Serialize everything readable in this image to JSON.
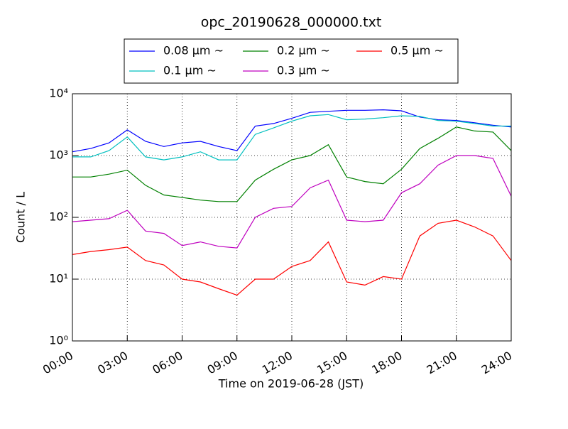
{
  "chart_data": {
    "type": "line",
    "title": "opc_20190628_000000.txt",
    "x_label": "Time on 2019-06-28 (JST)",
    "y_label": "Count / L",
    "x": [
      0,
      1,
      2,
      3,
      4,
      5,
      6,
      7,
      8,
      9,
      10,
      11,
      12,
      13,
      14,
      15,
      16,
      17,
      18,
      19,
      20,
      21,
      22,
      23,
      24
    ],
    "xlim": [
      0,
      24
    ],
    "xticks": [
      {
        "value": 0,
        "label": "00:00"
      },
      {
        "value": 3,
        "label": "03:00"
      },
      {
        "value": 6,
        "label": "06:00"
      },
      {
        "value": 9,
        "label": "09:00"
      },
      {
        "value": 12,
        "label": "12:00"
      },
      {
        "value": 15,
        "label": "15:00"
      },
      {
        "value": 18,
        "label": "18:00"
      },
      {
        "value": 21,
        "label": "21:00"
      },
      {
        "value": 24,
        "label": "24:00"
      }
    ],
    "ylim": [
      1,
      10000
    ],
    "log_y": true,
    "yticks": [
      {
        "value": 1,
        "label": "10⁰"
      },
      {
        "value": 10,
        "label": "10¹"
      },
      {
        "value": 100,
        "label": "10²"
      },
      {
        "value": 1000,
        "label": "10³"
      },
      {
        "value": 10000,
        "label": "10⁴"
      }
    ],
    "grid": true,
    "legend": "top",
    "series": [
      {
        "name": "0.08 μm ~",
        "color": "#0000ff",
        "values": [
          1150,
          1300,
          1600,
          2600,
          1700,
          1400,
          1600,
          1700,
          1400,
          1200,
          3000,
          3300,
          4000,
          5000,
          5200,
          5400,
          5400,
          5500,
          5300,
          4200,
          3800,
          3700,
          3400,
          3100,
          2900
        ]
      },
      {
        "name": "0.1 μm ~",
        "color": "#00bfbf",
        "values": [
          950,
          950,
          1200,
          2000,
          950,
          850,
          950,
          1150,
          850,
          850,
          2200,
          2800,
          3600,
          4400,
          4600,
          3800,
          3900,
          4100,
          4400,
          4300,
          3700,
          3600,
          3300,
          3000,
          3000
        ]
      },
      {
        "name": "0.2 μm ~",
        "color": "#008000",
        "values": [
          450,
          450,
          500,
          580,
          330,
          230,
          210,
          190,
          180,
          180,
          400,
          600,
          850,
          1000,
          1500,
          450,
          380,
          350,
          600,
          1300,
          1900,
          2900,
          2500,
          2400,
          1200
        ]
      },
      {
        "name": "0.3 μm ~",
        "color": "#bf00bf",
        "values": [
          85,
          90,
          95,
          130,
          60,
          55,
          35,
          40,
          34,
          32,
          100,
          140,
          150,
          300,
          400,
          90,
          85,
          90,
          250,
          350,
          700,
          1000,
          1000,
          900,
          220
        ]
      },
      {
        "name": "0.5 μm ~",
        "color": "#ff0000",
        "values": [
          25,
          28,
          30,
          33,
          20,
          17,
          10,
          9,
          7,
          5.5,
          10,
          10,
          16,
          20,
          40,
          9,
          8,
          11,
          10,
          50,
          80,
          90,
          70,
          50,
          20
        ]
      }
    ]
  }
}
